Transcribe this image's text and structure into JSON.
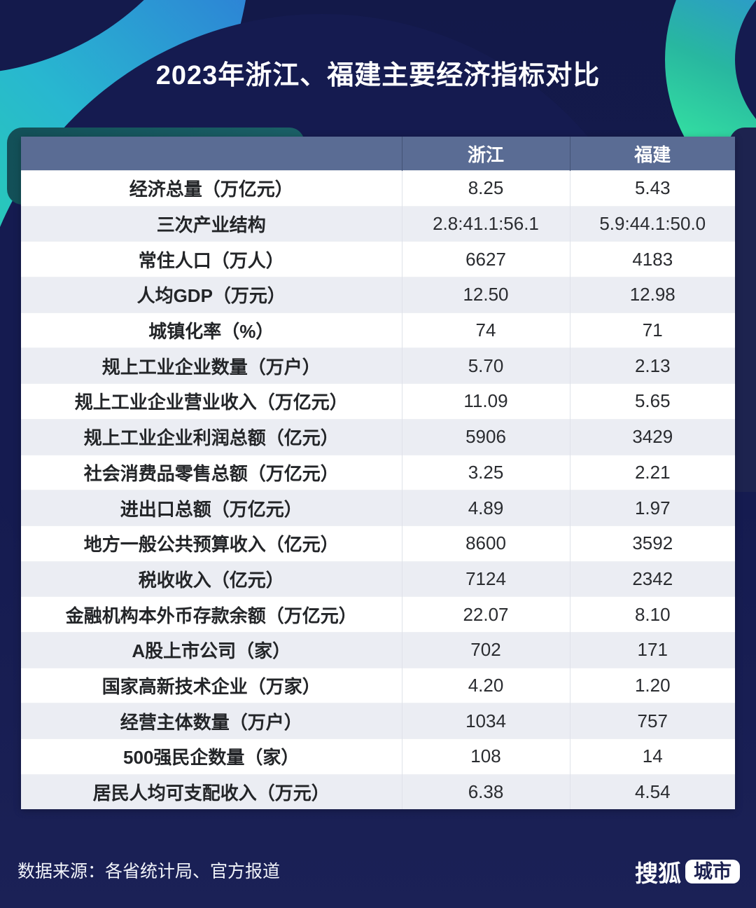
{
  "title": "2023年浙江、福建主要经济指标对比",
  "chart_data": {
    "type": "table",
    "title": "2023年浙江、福建主要经济指标对比",
    "columns": [
      "",
      "浙江",
      "福建"
    ],
    "rows": [
      {
        "indicator": "经济总量（万亿元）",
        "zhejiang": "8.25",
        "fujian": "5.43"
      },
      {
        "indicator": "三次产业结构",
        "zhejiang": "2.8:41.1:56.1",
        "fujian": "5.9:44.1:50.0"
      },
      {
        "indicator": "常住人口（万人）",
        "zhejiang": "6627",
        "fujian": "4183"
      },
      {
        "indicator": "人均GDP（万元）",
        "zhejiang": "12.50",
        "fujian": "12.98"
      },
      {
        "indicator": "城镇化率（%）",
        "zhejiang": "74",
        "fujian": "71"
      },
      {
        "indicator": "规上工业企业数量（万户）",
        "zhejiang": "5.70",
        "fujian": "2.13"
      },
      {
        "indicator": "规上工业企业营业收入（万亿元）",
        "zhejiang": "11.09",
        "fujian": "5.65"
      },
      {
        "indicator": "规上工业企业利润总额（亿元）",
        "zhejiang": "5906",
        "fujian": "3429"
      },
      {
        "indicator": "社会消费品零售总额（万亿元）",
        "zhejiang": "3.25",
        "fujian": "2.21"
      },
      {
        "indicator": "进出口总额（万亿元）",
        "zhejiang": "4.89",
        "fujian": "1.97"
      },
      {
        "indicator": "地方一般公共预算收入（亿元）",
        "zhejiang": "8600",
        "fujian": "3592"
      },
      {
        "indicator": "税收收入（亿元）",
        "zhejiang": "7124",
        "fujian": "2342"
      },
      {
        "indicator": "金融机构本外币存款余额（万亿元）",
        "zhejiang": "22.07",
        "fujian": "8.10"
      },
      {
        "indicator": "A股上市公司（家）",
        "zhejiang": "702",
        "fujian": "171"
      },
      {
        "indicator": "国家高新技术企业（万家）",
        "zhejiang": "4.20",
        "fujian": "1.20"
      },
      {
        "indicator": "经营主体数量（万户）",
        "zhejiang": "1034",
        "fujian": "757"
      },
      {
        "indicator": "500强民企数量（家）",
        "zhejiang": "108",
        "fujian": "14"
      },
      {
        "indicator": "居民人均可支配收入（万元）",
        "zhejiang": "6.38",
        "fujian": "4.54"
      }
    ]
  },
  "footer": {
    "source": "数据来源：各省统计局、官方报道",
    "logo_text": "搜狐",
    "logo_badge": "城市"
  },
  "colors": {
    "background_navy": "#151b50",
    "table_header": "#5a6c94",
    "row_white": "#ffffff",
    "row_alt": "#ebedf3",
    "accent_green": "#36e9a2",
    "accent_blue": "#2f86e8",
    "backdrop_teal": "#15555e",
    "logo_badge_bg": "#ffffff",
    "logo_badge_text": "#1c2150"
  }
}
